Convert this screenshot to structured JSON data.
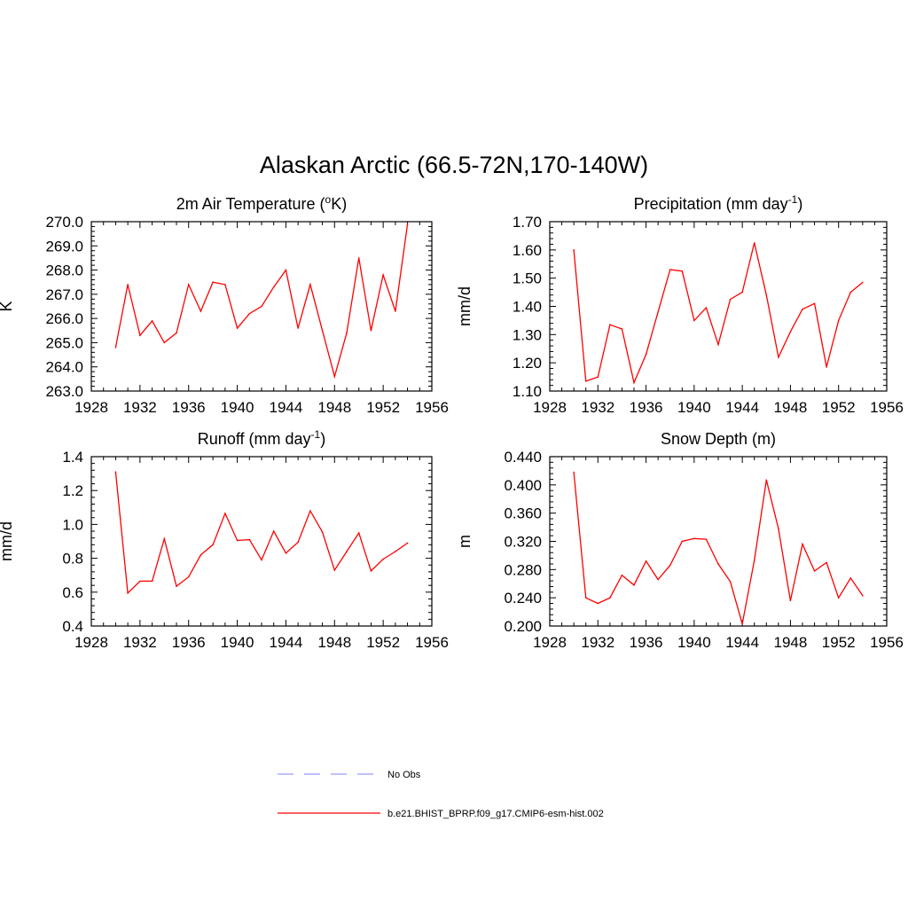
{
  "title": "Alaskan Arctic (66.5-72N,170-140W)",
  "legend": {
    "placement": "bottom-center",
    "entries": [
      {
        "label": "No Obs",
        "color": "#9999ff",
        "style": "dashed"
      },
      {
        "label": "b.e21.BHIST_BPRP.f09_g17.CMIP6-esm-hist.002",
        "color": "#ff0000",
        "style": "solid"
      }
    ]
  },
  "chart_data": [
    {
      "type": "line",
      "title": "2m Air Temperature (°K)",
      "title_parts": {
        "main": "2m Air Temperature (",
        "sup": "o",
        "tail": "K)"
      },
      "xlabel": "",
      "ylabel": "K",
      "xlim": [
        1928,
        1956
      ],
      "ylim": [
        263.0,
        270.0
      ],
      "xticks": [
        1928,
        1932,
        1936,
        1940,
        1944,
        1948,
        1952,
        1956
      ],
      "yticks": [
        "263.0",
        "264.0",
        "265.0",
        "266.0",
        "267.0",
        "268.0",
        "269.0",
        "270.0"
      ],
      "grid": false,
      "series": [
        {
          "color": "#ff0000",
          "x": [
            1930,
            1931,
            1932,
            1933,
            1934,
            1935,
            1936,
            1937,
            1938,
            1939,
            1940,
            1941,
            1942,
            1943,
            1944,
            1945,
            1946,
            1947,
            1948,
            1949,
            1950,
            1951,
            1952,
            1953,
            1954
          ],
          "values": [
            264.8,
            267.4,
            265.3,
            265.9,
            265.0,
            265.4,
            267.4,
            266.3,
            267.5,
            267.4,
            265.6,
            266.2,
            266.5,
            267.3,
            268.0,
            265.6,
            267.4,
            265.5,
            263.6,
            265.4,
            268.5,
            265.5,
            267.8,
            266.3,
            269.9
          ]
        }
      ]
    },
    {
      "type": "line",
      "title": "Precipitation (mm day-1)",
      "title_parts": {
        "main": "Precipitation (mm day",
        "sup": "-1",
        "tail": ")"
      },
      "xlabel": "",
      "ylabel": "mm/d",
      "xlim": [
        1928,
        1956
      ],
      "ylim": [
        1.1,
        1.7
      ],
      "xticks": [
        1928,
        1932,
        1936,
        1940,
        1944,
        1948,
        1952,
        1956
      ],
      "yticks": [
        "1.10",
        "1.20",
        "1.30",
        "1.40",
        "1.50",
        "1.60",
        "1.70"
      ],
      "grid": false,
      "series": [
        {
          "color": "#ff0000",
          "x": [
            1930,
            1931,
            1932,
            1933,
            1934,
            1935,
            1936,
            1937,
            1938,
            1939,
            1940,
            1941,
            1942,
            1943,
            1944,
            1945,
            1946,
            1947,
            1948,
            1949,
            1950,
            1951,
            1952,
            1953,
            1954
          ],
          "values": [
            1.6,
            1.135,
            1.15,
            1.335,
            1.32,
            1.13,
            1.23,
            1.38,
            1.53,
            1.525,
            1.35,
            1.395,
            1.265,
            1.425,
            1.45,
            1.625,
            1.44,
            1.22,
            1.31,
            1.39,
            1.41,
            1.185,
            1.35,
            1.45,
            1.485
          ]
        }
      ]
    },
    {
      "type": "line",
      "title": "Runoff (mm day-1)",
      "title_parts": {
        "main": "Runoff (mm day",
        "sup": "-1",
        "tail": ")"
      },
      "xlabel": "",
      "ylabel": "mm/d",
      "xlim": [
        1928,
        1956
      ],
      "ylim": [
        0.4,
        1.4
      ],
      "xticks": [
        1928,
        1932,
        1936,
        1940,
        1944,
        1948,
        1952,
        1956
      ],
      "yticks": [
        "0.4",
        "0.6",
        "0.8",
        "1.0",
        "1.2",
        "1.4"
      ],
      "grid": false,
      "series": [
        {
          "color": "#ff0000",
          "x": [
            1930,
            1931,
            1932,
            1933,
            1934,
            1935,
            1936,
            1937,
            1938,
            1939,
            1940,
            1941,
            1942,
            1943,
            1944,
            1945,
            1946,
            1947,
            1948,
            1949,
            1950,
            1951,
            1952,
            1953,
            1954
          ],
          "values": [
            1.31,
            0.595,
            0.665,
            0.665,
            0.915,
            0.635,
            0.69,
            0.82,
            0.88,
            1.065,
            0.905,
            0.91,
            0.79,
            0.96,
            0.83,
            0.895,
            1.08,
            0.955,
            0.73,
            0.84,
            0.95,
            0.725,
            0.795,
            0.84,
            0.89
          ]
        }
      ]
    },
    {
      "type": "line",
      "title": "Snow Depth (m)",
      "title_parts": {
        "main": "Snow Depth (m)",
        "sup": "",
        "tail": ""
      },
      "xlabel": "",
      "ylabel": "m",
      "xlim": [
        1928,
        1956
      ],
      "ylim": [
        0.2,
        0.44
      ],
      "xticks": [
        1928,
        1932,
        1936,
        1940,
        1944,
        1948,
        1952,
        1956
      ],
      "yticks": [
        "0.200",
        "0.240",
        "0.280",
        "0.320",
        "0.360",
        "0.400",
        "0.440"
      ],
      "grid": false,
      "series": [
        {
          "color": "#ff0000",
          "x": [
            1930,
            1931,
            1932,
            1933,
            1934,
            1935,
            1936,
            1937,
            1938,
            1939,
            1940,
            1941,
            1942,
            1943,
            1944,
            1945,
            1946,
            1947,
            1948,
            1949,
            1950,
            1951,
            1952,
            1953,
            1954
          ],
          "values": [
            0.418,
            0.24,
            0.232,
            0.24,
            0.272,
            0.258,
            0.292,
            0.266,
            0.286,
            0.32,
            0.324,
            0.323,
            0.288,
            0.263,
            0.203,
            0.293,
            0.407,
            0.338,
            0.236,
            0.316,
            0.278,
            0.29,
            0.24,
            0.268,
            0.243
          ]
        }
      ]
    }
  ]
}
